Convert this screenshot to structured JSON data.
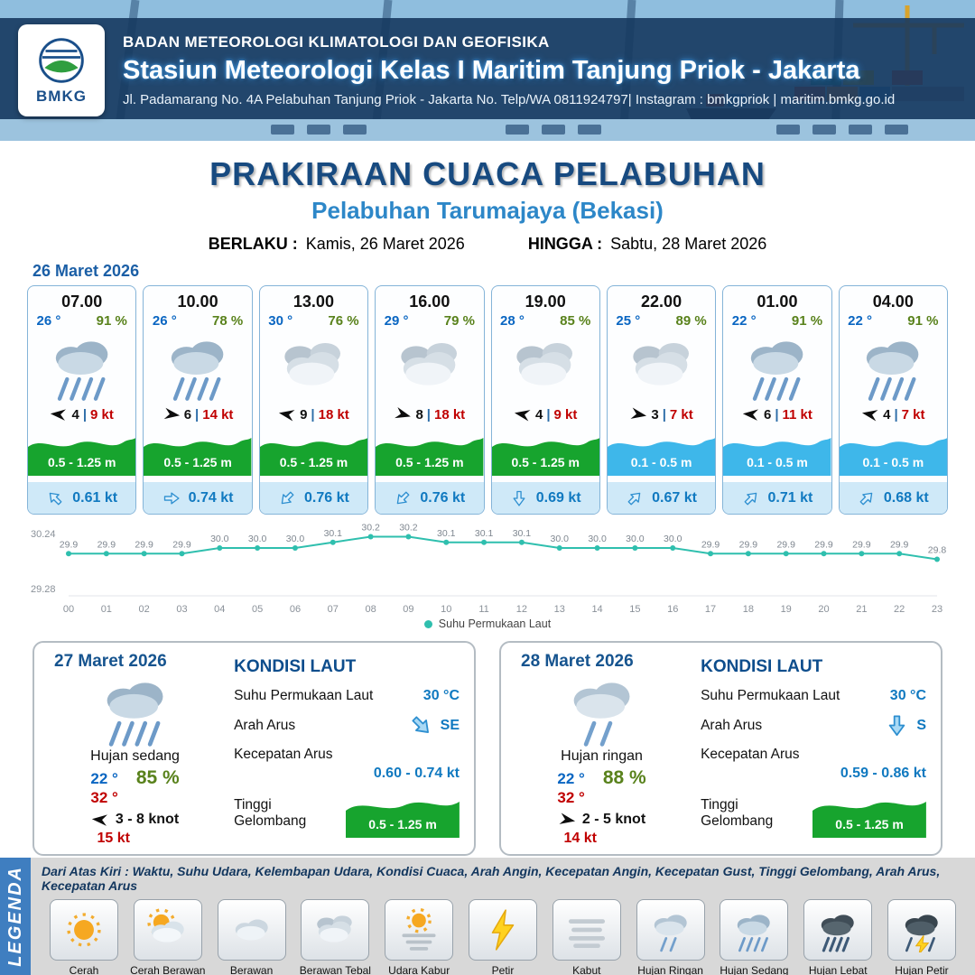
{
  "header": {
    "logo_text": "BMKG",
    "agency": "BADAN METEOROLOGI KLIMATOLOGI DAN GEOFISIKA",
    "station": "Stasiun Meteorologi Kelas I Maritim Tanjung Priok - Jakarta",
    "address": "Jl. Padamarang No. 4A Pelabuhan Tanjung Priok - Jakarta No. Telp/WA 0811924797| Instagram : bmkgpriok | maritim.bmkg.go.id"
  },
  "title": {
    "main": "PRAKIRAAN CUACA PELABUHAN",
    "sub": "Pelabuhan Tarumajaya (Bekasi)",
    "berlaku_label": "BERLAKU :",
    "berlaku_value": "Kamis, 26 Maret 2026",
    "hingga_label": "HINGGA :",
    "hingga_value": "Sabtu, 28 Maret 2026"
  },
  "forecast_date": "26 Maret 2026",
  "cards": [
    {
      "time": "07.00",
      "temp": "26 °",
      "rh": "91 %",
      "icon": "hujan-sedang",
      "wind_rot": 185,
      "wind_speed": "4",
      "gust": "9 kt",
      "wave": "0.5 - 1.25 m",
      "wave_color": "#17a42e",
      "current_rot": -135,
      "current": "0.61 kt"
    },
    {
      "time": "10.00",
      "temp": "26 °",
      "rh": "78 %",
      "icon": "hujan-sedang",
      "wind_rot": 8,
      "wind_speed": "6",
      "gust": "14 kt",
      "wave": "0.5 - 1.25 m",
      "wave_color": "#17a42e",
      "current_rot": 0,
      "current": "0.74 kt"
    },
    {
      "time": "13.00",
      "temp": "30 °",
      "rh": "76 %",
      "icon": "berawan-tebal",
      "wind_rot": 190,
      "wind_speed": "9",
      "gust": "18 kt",
      "wave": "0.5 - 1.25 m",
      "wave_color": "#17a42e",
      "current_rot": 135,
      "current": "0.76 kt"
    },
    {
      "time": "16.00",
      "temp": "29 °",
      "rh": "79 %",
      "icon": "berawan-tebal",
      "wind_rot": 15,
      "wind_speed": "8",
      "gust": "18 kt",
      "wave": "0.5 - 1.25 m",
      "wave_color": "#17a42e",
      "current_rot": 135,
      "current": "0.76 kt"
    },
    {
      "time": "19.00",
      "temp": "28 °",
      "rh": "85 %",
      "icon": "berawan-tebal",
      "wind_rot": 190,
      "wind_speed": "4",
      "gust": "9 kt",
      "wave": "0.5 - 1.25 m",
      "wave_color": "#17a42e",
      "current_rot": 90,
      "current": "0.69 kt"
    },
    {
      "time": "22.00",
      "temp": "25 °",
      "rh": "89 %",
      "icon": "berawan-tebal",
      "wind_rot": 10,
      "wind_speed": "3",
      "gust": "7 kt",
      "wave": "0.1 - 0.5 m",
      "wave_color": "#3eb7ea",
      "current_rot": -45,
      "current": "0.67 kt"
    },
    {
      "time": "01.00",
      "temp": "22 °",
      "rh": "91 %",
      "icon": "hujan-sedang",
      "wind_rot": 185,
      "wind_speed": "6",
      "gust": "11 kt",
      "wave": "0.1 - 0.5 m",
      "wave_color": "#3eb7ea",
      "current_rot": -45,
      "current": "0.71 kt"
    },
    {
      "time": "04.00",
      "temp": "22 °",
      "rh": "91 %",
      "icon": "hujan-sedang",
      "wind_rot": 190,
      "wind_speed": "4",
      "gust": "7 kt",
      "wave": "0.1 - 0.5 m",
      "wave_color": "#3eb7ea",
      "current_rot": -45,
      "current": "0.68 kt"
    }
  ],
  "chart_data": {
    "type": "line",
    "legend_label": "Suhu Permukaan Laut",
    "x": [
      "00",
      "01",
      "02",
      "03",
      "04",
      "05",
      "06",
      "07",
      "08",
      "09",
      "10",
      "11",
      "12",
      "13",
      "14",
      "15",
      "16",
      "17",
      "18",
      "19",
      "20",
      "21",
      "22",
      "23"
    ],
    "values": [
      29.9,
      29.9,
      29.9,
      29.9,
      30.0,
      30.0,
      30.0,
      30.1,
      30.2,
      30.2,
      30.1,
      30.1,
      30.1,
      30.0,
      30.0,
      30.0,
      30.0,
      29.9,
      29.9,
      29.9,
      29.9,
      29.9,
      29.9,
      29.8
    ],
    "ylim": [
      29.28,
      30.24
    ],
    "line_color": "#2fbfae",
    "grid": false,
    "legend_position": "bottom"
  },
  "panels": [
    {
      "date": "27 Maret 2026",
      "icon": "hujan-sedang",
      "condition": "Hujan sedang",
      "temp_min": "22 °",
      "rh": "85 %",
      "temp_max": "32 °",
      "wind_rot": 185,
      "wind_range": "3  - 8 knot",
      "gust": "15 kt",
      "sea": {
        "heading": "KONDISI LAUT",
        "sst_label": "Suhu Permukaan Laut",
        "sst": "30 °C",
        "current_dir_label": "Arah Arus",
        "current_dir": "SE",
        "current_rot": 45,
        "current_speed_label": "Kecepatan Arus",
        "current_speed": "0.60  - 0.74 kt",
        "wave_label": "Tinggi Gelombang",
        "wave": "0.5 - 1.25 m",
        "wave_color": "#17a42e"
      }
    },
    {
      "date": "28 Maret 2026",
      "icon": "hujan-ringan",
      "condition": "Hujan ringan",
      "temp_min": "22 °",
      "rh": "88 %",
      "temp_max": "32 °",
      "wind_rot": 10,
      "wind_range": "2  - 5 knot",
      "gust": "14 kt",
      "sea": {
        "heading": "KONDISI LAUT",
        "sst_label": "Suhu Permukaan Laut",
        "sst": "30 °C",
        "current_dir_label": "Arah Arus",
        "current_dir": "S",
        "current_rot": 90,
        "current_speed_label": "Kecepatan Arus",
        "current_speed": "0.59 - 0.86 kt",
        "wave_label": "Tinggi Gelombang",
        "wave": "0.5 - 1.25 m",
        "wave_color": "#17a42e"
      }
    }
  ],
  "legend": {
    "stripe": "LEGENDA",
    "description": "Dari Atas Kiri : Waktu, Suhu Udara, Kelembapan Udara, Kondisi Cuaca, Arah Angin, Kecepatan Angin, Kecepatan Gust, Tinggi Gelombang, Arah Arus, Kecepatan Arus",
    "items": [
      {
        "icon": "cerah",
        "label": "Cerah"
      },
      {
        "icon": "cerah-berawan",
        "label": "Cerah Berawan"
      },
      {
        "icon": "berawan",
        "label": "Berawan"
      },
      {
        "icon": "berawan-tebal",
        "label": "Berawan Tebal"
      },
      {
        "icon": "udara-kabur",
        "label": "Udara Kabur"
      },
      {
        "icon": "petir",
        "label": "Petir"
      },
      {
        "icon": "kabut",
        "label": "Kabut"
      },
      {
        "icon": "hujan-ringan",
        "label": "Hujan Ringan"
      },
      {
        "icon": "hujan-sedang",
        "label": "Hujan Sedang"
      },
      {
        "icon": "hujan-lebat",
        "label": "Hujan Lebat"
      },
      {
        "icon": "hujan-petir",
        "label": "Hujan Petir"
      }
    ]
  },
  "colors": {
    "navy_header": "#16395f",
    "title_blue": "#174a80",
    "sub_blue": "#2d87c8",
    "temp_blue": "#0a66c2",
    "humidity_green": "#59821c",
    "gust_red": "#c00000",
    "wave_green": "#17a42e",
    "wave_blue": "#3eb7ea",
    "current_blue": "#1079c0",
    "chart_teal": "#2fbfae",
    "legend_stripe_blue": "#3f7ec0"
  }
}
